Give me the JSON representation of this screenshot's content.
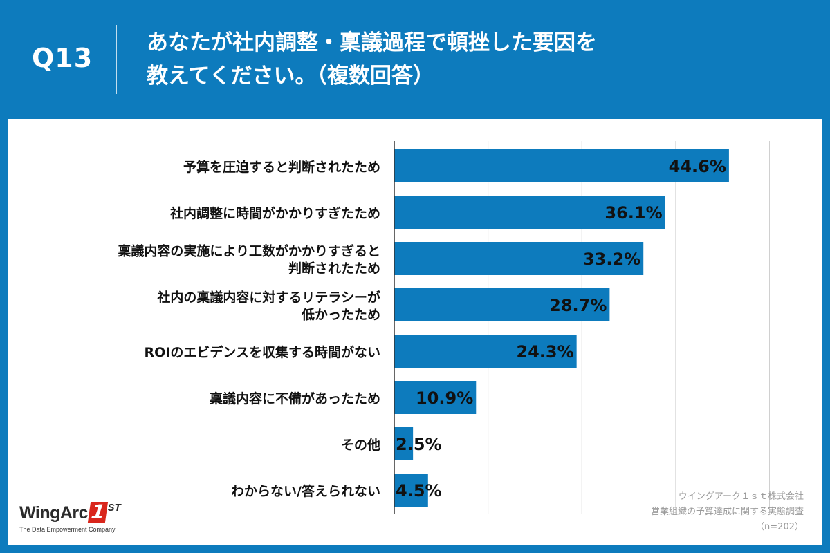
{
  "header": {
    "question_number": "Q13",
    "question_line1": "あなたが社内調整・稟議過程で頓挫した要因を",
    "question_line2": "教えてください。（複数回答）"
  },
  "colors": {
    "background": "#0d7bbd",
    "bar": "#0d7bbd",
    "panel": "#ffffff",
    "grid": "#d0d0d0"
  },
  "chart_data": {
    "type": "bar",
    "orientation": "horizontal",
    "categories": [
      [
        "予算を圧迫すると判断されたため"
      ],
      [
        "社内調整に時間がかかりすぎたため"
      ],
      [
        "稟議内容の実施により工数がかかりすぎると",
        "判断されたため"
      ],
      [
        "社内の稟議内容に対するリテラシーが",
        "低かったため"
      ],
      [
        "ROIのエビデンスを収集する時間がない"
      ],
      [
        "稟議内容に不備があったため"
      ],
      [
        "その他"
      ],
      [
        "わからない/答えられない"
      ]
    ],
    "values": [
      44.6,
      36.1,
      33.2,
      28.7,
      24.3,
      10.9,
      2.5,
      4.5
    ],
    "value_labels": [
      "44.6%",
      "36.1%",
      "33.2%",
      "28.7%",
      "24.3%",
      "10.9%",
      "2.5%",
      "4.5%"
    ],
    "xlim": [
      0,
      50
    ],
    "gridlines": [
      0,
      12.5,
      25,
      37.5,
      50
    ],
    "grid": true,
    "legend": "none"
  },
  "logo": {
    "main": "WingArc",
    "one": "1",
    "st": "ST",
    "sub": "The Data Empowerment Company"
  },
  "source": {
    "line1": "ウイングアーク１ｓｔ株式会社",
    "line2": "営業組織の予算達成に関する実態調査",
    "line3": "（n=202）"
  }
}
